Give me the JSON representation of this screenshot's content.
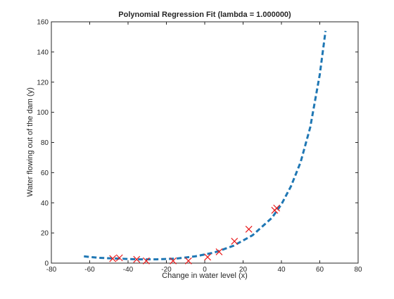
{
  "chart_data": {
    "type": "scatter",
    "title": "Polynomial Regression Fit (lambda = 1.000000)",
    "xlabel": "Change in water level (x)",
    "ylabel": "Water flowing out of the dam (y)",
    "xlim": [
      -80,
      80
    ],
    "ylim": [
      0,
      160
    ],
    "xticks": [
      -80,
      -60,
      -40,
      -20,
      0,
      20,
      40,
      60,
      80
    ],
    "yticks": [
      0,
      20,
      40,
      60,
      80,
      100,
      120,
      140,
      160
    ],
    "grid": false,
    "legend": "none",
    "series": [
      {
        "kind": "markers",
        "marker": "x",
        "color": "#e8191a",
        "x": [
          -48,
          -44.5,
          -35.5,
          -30.5,
          -16.5,
          -8.5,
          1.5,
          7.5,
          15.5,
          23,
          36.5,
          37.5
        ],
        "y": [
          3,
          3.5,
          2.5,
          1.5,
          1.5,
          1.5,
          4,
          7.5,
          14.5,
          22.5,
          35,
          36.5
        ]
      },
      {
        "kind": "line",
        "style": "dashed",
        "color": "#1f77b4",
        "x": [
          -63,
          -55,
          -45,
          -35,
          -25,
          -15,
          -5,
          5,
          15,
          25,
          35,
          40,
          45,
          50,
          55,
          60,
          63
        ],
        "y": [
          4.5,
          3.5,
          3,
          2.5,
          2.5,
          3,
          4.5,
          7,
          11.5,
          18.5,
          30,
          39,
          51,
          67,
          90,
          125,
          154
        ]
      }
    ]
  }
}
